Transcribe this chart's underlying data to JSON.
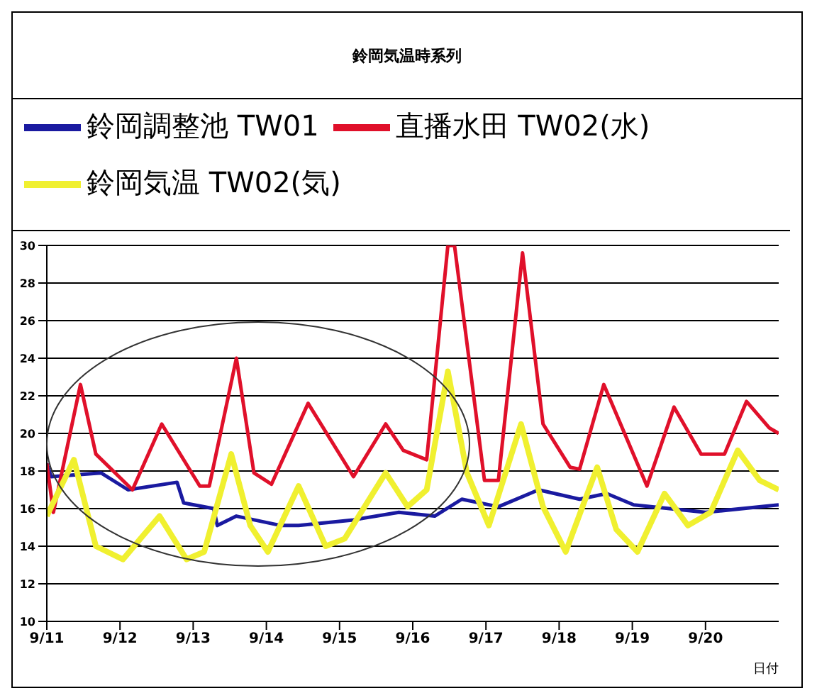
{
  "chart_data": {
    "type": "line",
    "title": "鈴岡気温時系列",
    "xlabel": "日付",
    "xlim": [
      "--09-11",
      "--09-21"
    ],
    "xticks": [
      {
        "value": "--09-11",
        "label": "9/11"
      },
      {
        "value": "--09-12",
        "label": "9/12"
      },
      {
        "value": "--09-13",
        "label": "9/13"
      },
      {
        "value": "--09-14",
        "label": "9/14"
      },
      {
        "value": "--09-15",
        "label": "9/15"
      },
      {
        "value": "--09-16",
        "label": "9/16"
      },
      {
        "value": "--09-17",
        "label": "9/17"
      },
      {
        "value": "--09-18",
        "label": "9/18"
      },
      {
        "value": "--09-19",
        "label": "9/19"
      },
      {
        "value": "--09-20",
        "label": "9/20"
      }
    ],
    "ylim": [
      10,
      30
    ],
    "yticks": [
      10,
      12,
      14,
      16,
      18,
      20,
      22,
      24,
      26,
      28,
      30
    ],
    "grid": "y",
    "legend": "top",
    "marker": "none",
    "line_style": "solid",
    "series": [
      {
        "name": "鈴岡調整池 TW01",
        "color": "#1a1aa0",
        "x": [
          "--09-11T00:00",
          "--09-11T01:26",
          "--09-11T17:46",
          "--09-12T02:38",
          "--09-12T18:43",
          "--09-12T20:53",
          "--09-13T06:43",
          "--09-13T07:55",
          "--09-13T14:10",
          "--09-14T04:48",
          "--09-14T10:34",
          "--09-15T04:34",
          "--09-15T19:26",
          "--09-16T07:12",
          "--09-16T16:05",
          "--09-17T04:05",
          "--09-17T17:17",
          "--09-18T06:43",
          "--09-18T15:36",
          "--09-19T00:29",
          "--09-20T00:00",
          "--09-21T00:00"
        ],
        "values": [
          18.4,
          17.7,
          17.9,
          17.0,
          17.4,
          16.3,
          16.0,
          15.1,
          15.6,
          15.1,
          15.1,
          15.4,
          15.8,
          15.6,
          16.5,
          16.1,
          17.0,
          16.5,
          16.8,
          16.2,
          15.8,
          16.2
        ]
      },
      {
        "name": "直播水田 TW02(水)",
        "color": "#e0102a",
        "x": [
          "--09-11T00:00",
          "--09-11T02:10",
          "--09-11T11:02",
          "--09-11T16:05",
          "--09-12T04:05",
          "--09-12T13:41",
          "--09-13T02:10",
          "--09-13T05:17",
          "--09-13T14:10",
          "--09-13T19:55",
          "--09-14T01:41",
          "--09-14T13:41",
          "--09-15T04:34",
          "--09-15T15:07",
          "--09-15T20:53",
          "--09-16T04:34",
          "--09-16T11:31",
          "--09-16T13:41",
          "--09-16T23:31",
          "--09-17T04:05",
          "--09-17T12:00",
          "--09-17T18:43",
          "--09-18T03:36",
          "--09-18T06:43",
          "--09-18T14:38",
          "--09-19T04:48",
          "--09-19T13:41",
          "--09-19T22:34",
          "--09-20T06:14",
          "--09-20T13:26",
          "--09-20T20:53",
          "--09-21T00:00"
        ],
        "values": [
          18.4,
          15.8,
          22.6,
          18.9,
          17.0,
          20.5,
          17.2,
          17.2,
          24.0,
          17.9,
          17.3,
          21.6,
          17.7,
          20.5,
          19.1,
          18.6,
          30.0,
          30.0,
          17.5,
          17.5,
          29.6,
          20.5,
          18.2,
          18.1,
          22.6,
          17.2,
          21.4,
          18.9,
          18.9,
          21.7,
          20.3,
          20.0
        ]
      },
      {
        "name": "鈴岡気温 TW02(気)",
        "color": "#f0f030",
        "x": [
          "--09-11T00:00",
          "--09-11T08:53",
          "--09-11T16:05",
          "--09-12T00:58",
          "--09-12T12:58",
          "--09-12T21:50",
          "--09-13T03:36",
          "--09-13T12:29",
          "--09-13T18:43",
          "--09-14T00:29",
          "--09-14T10:34",
          "--09-14T19:26",
          "--09-15T01:41",
          "--09-15T15:07",
          "--09-15T22:19",
          "--09-16T04:34",
          "--09-16T11:31",
          "--09-16T17:46",
          "--09-17T00:58",
          "--09-17T11:31",
          "--09-17T18:43",
          "--09-18T02:10",
          "--09-18T12:29",
          "--09-18T18:43",
          "--09-19T01:41",
          "--09-19T10:34",
          "--09-19T18:14",
          "--09-20T01:41",
          "--09-20T10:34",
          "--09-20T17:46",
          "--09-21T00:00"
        ],
        "values": [
          15.6,
          18.6,
          14.0,
          13.3,
          15.6,
          13.3,
          13.7,
          18.9,
          15.1,
          13.7,
          17.2,
          14.0,
          14.4,
          17.9,
          16.1,
          17.0,
          23.3,
          17.9,
          15.1,
          20.5,
          16.1,
          13.7,
          18.2,
          14.9,
          13.7,
          16.8,
          15.1,
          15.8,
          19.1,
          17.5,
          17.0
        ]
      }
    ]
  }
}
